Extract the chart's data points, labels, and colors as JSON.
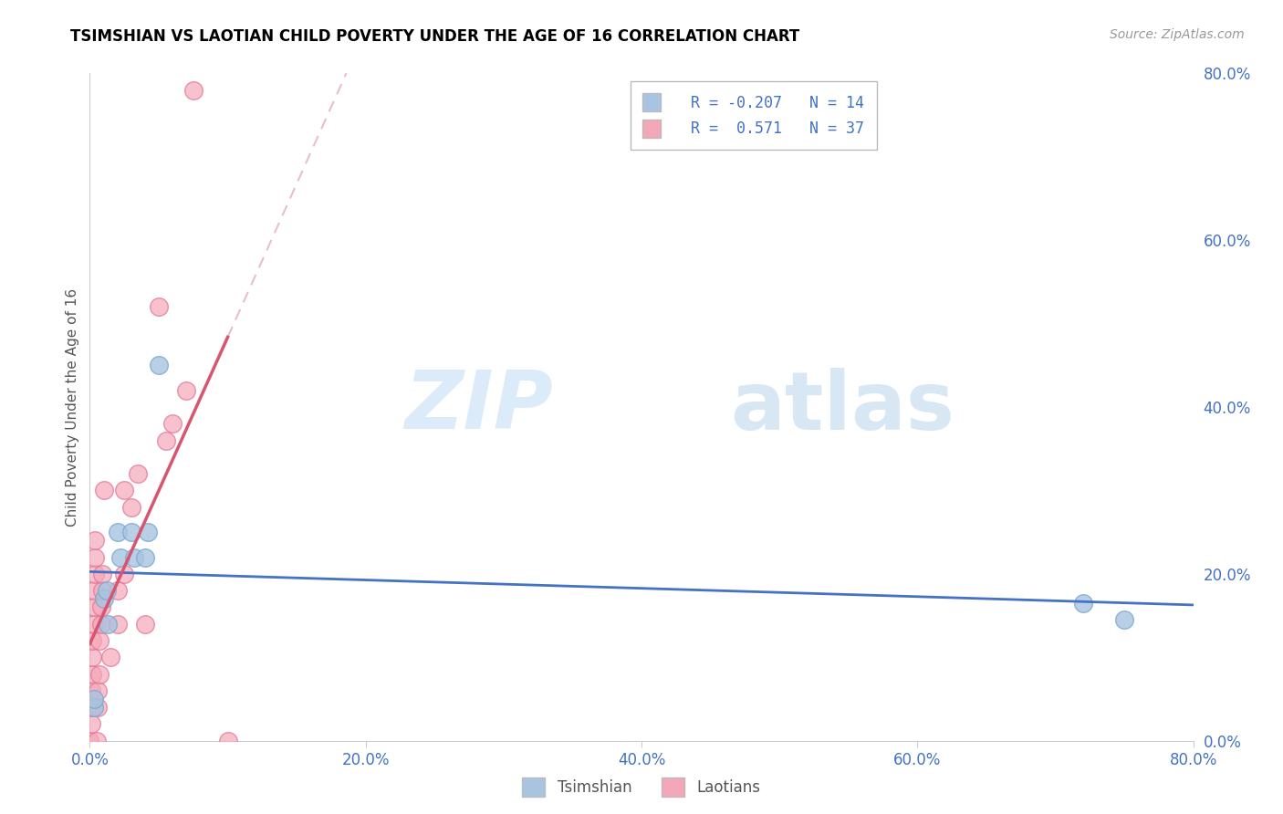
{
  "title": "TSIMSHIAN VS LAOTIAN CHILD POVERTY UNDER THE AGE OF 16 CORRELATION CHART",
  "source": "Source: ZipAtlas.com",
  "ylabel": "Child Poverty Under the Age of 16",
  "xlim": [
    0.0,
    0.8
  ],
  "ylim": [
    0.0,
    0.8
  ],
  "yticks_right": [
    0.0,
    0.2,
    0.4,
    0.6,
    0.8
  ],
  "xticks": [
    0.0,
    0.2,
    0.4,
    0.6,
    0.8
  ],
  "tsimshian_color": "#a8c4e0",
  "tsimshian_edge_color": "#7aa8cc",
  "laotian_color": "#f4a7b9",
  "laotian_edge_color": "#e07090",
  "tsimshian_line_color": "#4472c4",
  "laotian_line_color": "#d9546e",
  "laotian_dashed_color": "#e0b0bc",
  "legend_r_tsimshian": "R = -0.207",
  "legend_n_tsimshian": "N = 14",
  "legend_r_laotian": "R =  0.571",
  "legend_n_laotian": "N = 37",
  "watermark_zip": "ZIP",
  "watermark_atlas": "atlas",
  "tsimshian_points": [
    [
      0.003,
      0.04
    ],
    [
      0.003,
      0.05
    ],
    [
      0.01,
      0.17
    ],
    [
      0.012,
      0.18
    ],
    [
      0.013,
      0.14
    ],
    [
      0.02,
      0.25
    ],
    [
      0.022,
      0.22
    ],
    [
      0.03,
      0.25
    ],
    [
      0.032,
      0.22
    ],
    [
      0.04,
      0.22
    ],
    [
      0.042,
      0.25
    ],
    [
      0.05,
      0.45
    ],
    [
      0.72,
      0.165
    ],
    [
      0.75,
      0.145
    ]
  ],
  "laotian_points": [
    [
      0.0,
      0.0
    ],
    [
      0.001,
      0.02
    ],
    [
      0.001,
      0.04
    ],
    [
      0.001,
      0.06
    ],
    [
      0.002,
      0.08
    ],
    [
      0.002,
      0.1
    ],
    [
      0.002,
      0.12
    ],
    [
      0.003,
      0.14
    ],
    [
      0.003,
      0.16
    ],
    [
      0.003,
      0.18
    ],
    [
      0.004,
      0.2
    ],
    [
      0.004,
      0.22
    ],
    [
      0.004,
      0.24
    ],
    [
      0.005,
      0.0
    ],
    [
      0.006,
      0.04
    ],
    [
      0.006,
      0.06
    ],
    [
      0.007,
      0.08
    ],
    [
      0.007,
      0.12
    ],
    [
      0.008,
      0.14
    ],
    [
      0.008,
      0.16
    ],
    [
      0.009,
      0.18
    ],
    [
      0.009,
      0.2
    ],
    [
      0.01,
      0.3
    ],
    [
      0.015,
      0.1
    ],
    [
      0.02,
      0.14
    ],
    [
      0.02,
      0.18
    ],
    [
      0.025,
      0.2
    ],
    [
      0.025,
      0.3
    ],
    [
      0.03,
      0.28
    ],
    [
      0.035,
      0.32
    ],
    [
      0.04,
      0.14
    ],
    [
      0.05,
      0.52
    ],
    [
      0.055,
      0.36
    ],
    [
      0.06,
      0.38
    ],
    [
      0.07,
      0.42
    ],
    [
      0.075,
      0.78
    ],
    [
      0.1,
      0.0
    ]
  ],
  "background_color": "#ffffff",
  "grid_color": "#cccccc",
  "tick_color": "#4472c4",
  "spine_color": "#cccccc"
}
